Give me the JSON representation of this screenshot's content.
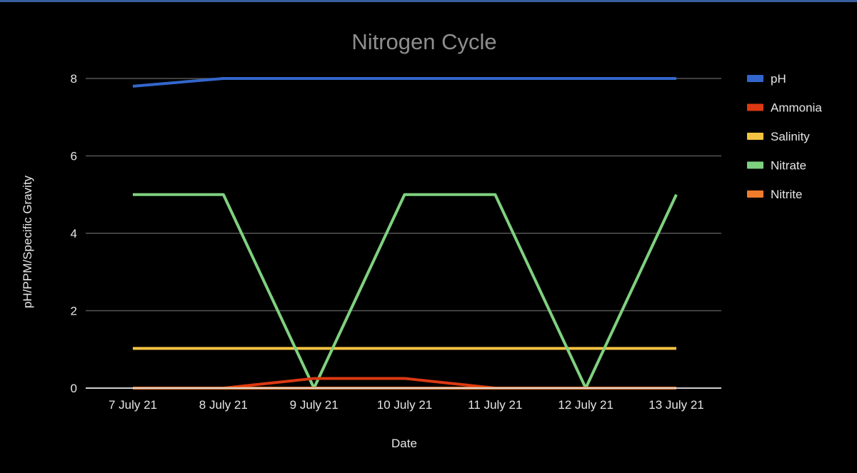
{
  "chart_data": {
    "type": "line",
    "title": "Nitrogen Cycle",
    "xlabel": "Date",
    "ylabel": "pH/PPM/Specific Gravity",
    "categories": [
      "7 July 21",
      "8 July 21",
      "9 July 21",
      "10 July 21",
      "11 July 21",
      "12 July 21",
      "13 July 21"
    ],
    "ylim": [
      0,
      8
    ],
    "yticks": [
      0,
      2,
      4,
      6,
      8
    ],
    "grid": true,
    "legend_position": "right",
    "series": [
      {
        "name": "pH",
        "color": "#3366cc",
        "values": [
          7.8,
          8.0,
          8.0,
          8.0,
          8.0,
          8.0,
          8.0
        ]
      },
      {
        "name": "Ammonia",
        "color": "#dc3912",
        "values": [
          0,
          0,
          0.25,
          0.25,
          0,
          0,
          0
        ]
      },
      {
        "name": "Salinity",
        "color": "#f5c342",
        "values": [
          1.025,
          1.025,
          1.025,
          1.025,
          1.025,
          1.025,
          1.025
        ]
      },
      {
        "name": "Nitrate",
        "color": "#7fd17f",
        "values": [
          5,
          5,
          0,
          5,
          5,
          0,
          5
        ]
      },
      {
        "name": "Nitrite",
        "color": "#ef7b2d",
        "values": [
          0,
          0,
          0,
          0,
          0,
          0,
          0
        ]
      }
    ]
  }
}
